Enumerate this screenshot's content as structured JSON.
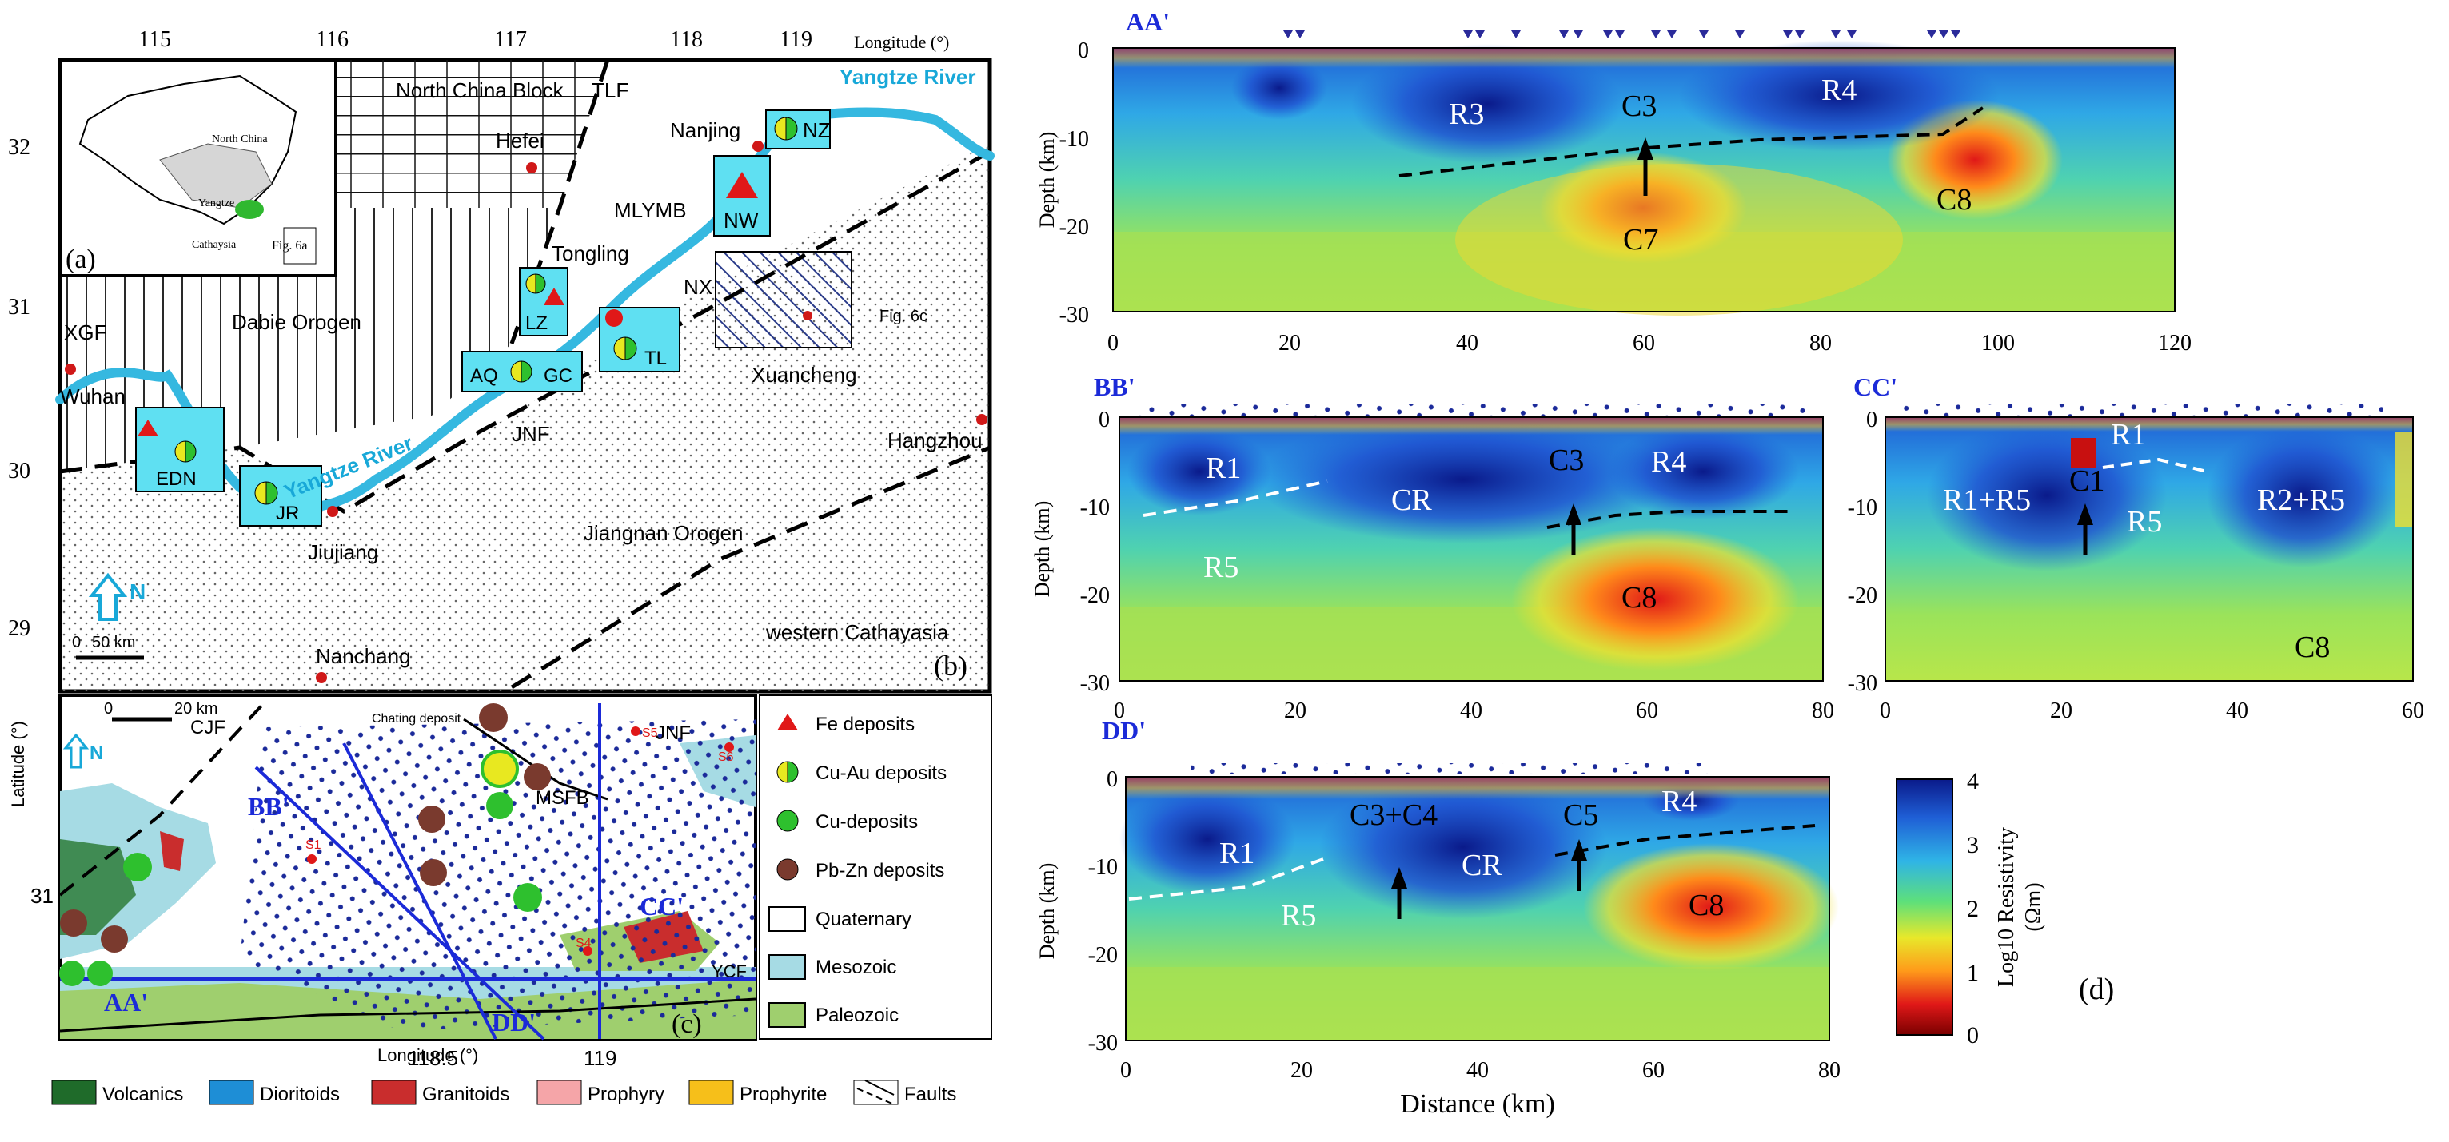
{
  "figure": {
    "map_b": {
      "longitude_label": "Longitude (°)",
      "latitude_label": "Latitude (°)",
      "lon_ticks": [
        "115",
        "116",
        "117",
        "118",
        "119"
      ],
      "lat_ticks": [
        "32",
        "31",
        "30",
        "29"
      ],
      "panel_label": "(b)",
      "north_label": "N",
      "scale_label": "50 km",
      "scale_zero": "0",
      "labels": {
        "north_china_block": "North China Block",
        "tlf": "TLF",
        "yangtze_river_top": "Yangtze River",
        "yangtze_river_mid": "Yangtze River",
        "nanjing": "Nanjing",
        "hefei": "Hefei",
        "mlymb": "MLYMB",
        "tongling": "Tongling",
        "nx": "NX",
        "fig6c": "Fig. 6c",
        "xuancheng": "Xuancheng",
        "dabie": "Dabie Orogen",
        "xgf": "XGF",
        "wuhan": "Wuhan",
        "jnf": "JNF",
        "hangzhou": "Hangzhou",
        "jiujiang": "Jiujiang",
        "jiangnan": "Jiangnan Orogen",
        "nanchang": "Nanchang",
        "cathaysia": "western Cathayasia"
      },
      "districts": {
        "nz": "NZ",
        "nw": "NW",
        "lz": "LZ",
        "aq": "AQ",
        "gc": "GC",
        "tl": "TL",
        "edn": "EDN",
        "jr": "JR"
      }
    },
    "inset_a": {
      "panel_label": "(a)",
      "north_china": "North China",
      "yangtze": "Yangtze",
      "cathaysia": "Cathaysia",
      "fig6a": "Fig. 6a"
    },
    "map_c": {
      "panel_label": "(c)",
      "scale_zero": "0",
      "scale_label": "20 km",
      "north_label": "N",
      "lat_tick": "31",
      "lon_ticks": [
        "118.5",
        "119"
      ],
      "longitude_label": "Longitude (°)",
      "cjf": "CJF",
      "chating": "Chating deposit",
      "jnf": "JNF",
      "msfb": "MSFB",
      "ycf": "YCF",
      "s1": "S1",
      "s4": "S4",
      "s5": "S5",
      "s6": "S6",
      "profiles": {
        "aa": "AA'",
        "bb": "BB'",
        "cc": "CC'",
        "dd": "DD'"
      }
    },
    "legend_deposits": [
      {
        "label": "Fe deposits",
        "icon": "triangle-icon"
      },
      {
        "label": "Cu-Au deposits",
        "icon": "half-circle-icon"
      },
      {
        "label": "Cu-deposits",
        "icon": "circle-icon"
      },
      {
        "label": "Pb-Zn deposits",
        "icon": "circle-icon"
      },
      {
        "label": "Quaternary",
        "icon": "swatch-icon"
      },
      {
        "label": "Mesozoic",
        "icon": "swatch-icon"
      },
      {
        "label": "Paleozoic",
        "icon": "swatch-icon"
      }
    ],
    "legend_rocks": [
      {
        "label": "Volcanics",
        "color": "#1f6b2a"
      },
      {
        "label": "Dioritoids",
        "color": "#1e8ed6"
      },
      {
        "label": "Granitoids",
        "color": "#c92d2d"
      },
      {
        "label": "Prophyry",
        "color": "#f5a5a8"
      },
      {
        "label": "Prophyrite",
        "color": "#f6bf1a"
      },
      {
        "label": "Faults",
        "color": ""
      }
    ],
    "sections": {
      "aa": {
        "title": "AA'",
        "ylabel": "Depth (km)",
        "yticks": [
          "0",
          "-10",
          "-20",
          "-30"
        ],
        "xticks": [
          "0",
          "20",
          "40",
          "60",
          "80",
          "100",
          "120"
        ],
        "labels": {
          "r3": "R3",
          "c3": "C3",
          "r4": "R4",
          "c7": "C7",
          "c8": "C8"
        }
      },
      "bb": {
        "title": "BB'",
        "ylabel": "Depth (km)",
        "yticks": [
          "0",
          "-10",
          "-20",
          "-30"
        ],
        "xticks": [
          "0",
          "20",
          "40",
          "60",
          "80"
        ],
        "labels": {
          "r1": "R1",
          "cr": "CR",
          "c3": "C3",
          "r4": "R4",
          "r5": "R5",
          "c8": "C8"
        }
      },
      "cc": {
        "title": "CC'",
        "yticks": [
          "0",
          "-10",
          "-20",
          "-30"
        ],
        "xticks": [
          "0",
          "20",
          "40",
          "60"
        ],
        "labels": {
          "r1": "R1",
          "r1r5": "R1+R5",
          "c1": "C1",
          "r5": "R5",
          "r2r5": "R2+R5",
          "c8": "C8"
        }
      },
      "dd": {
        "title": "DD'",
        "ylabel": "Depth (km)",
        "yticks": [
          "0",
          "-10",
          "-20",
          "-30"
        ],
        "xticks": [
          "0",
          "20",
          "40",
          "60",
          "80"
        ],
        "xlabel": "Distance (km)",
        "labels": {
          "r1": "R1",
          "c3c4": "C3+C4",
          "c5": "C5",
          "r4": "R4",
          "cr": "CR",
          "r5": "R5",
          "c8": "C8"
        }
      }
    },
    "colorbar": {
      "title": "Log10 Resistivity",
      "unit": "(Ωm)",
      "ticks": [
        "4",
        "3",
        "2",
        "1",
        "0"
      ],
      "colors": [
        "#0a1a8a",
        "#1f5fd6",
        "#2fb4e6",
        "#5ee07a",
        "#e8e82a",
        "#ff9a1a",
        "#e01818",
        "#7a0000"
      ]
    },
    "panel_d_label": "(d)"
  }
}
